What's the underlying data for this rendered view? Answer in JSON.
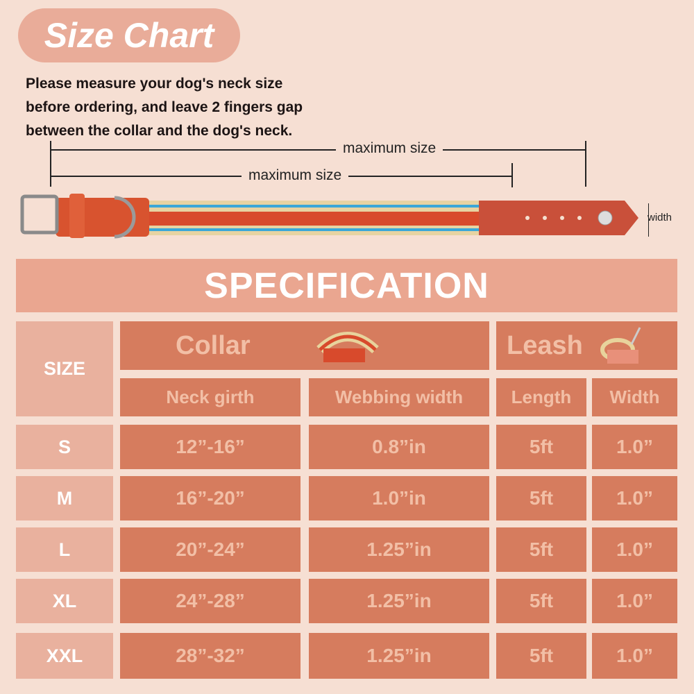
{
  "title": "Size Chart",
  "instructions": "Please measure your dog's neck size\nbefore ordering, and leave 2 fingers gap\nbetween the collar and the dog's neck.",
  "diagram": {
    "max_label_1": "maximum size",
    "max_label_2": "maximum size",
    "width_label": "width"
  },
  "specification": "SPECIFICATION",
  "table": {
    "size_header": "SIZE",
    "collar_header": "Collar",
    "leash_header": "Leash",
    "columns": [
      "Neck girth",
      "Webbing width",
      "Length",
      "Width"
    ],
    "rows": [
      {
        "size": "S",
        "neck": "12”-16”",
        "webbing": "0.8”in",
        "length": "5ft",
        "width": "1.0”"
      },
      {
        "size": "M",
        "neck": "16”-20”",
        "webbing": "1.0”in",
        "length": "5ft",
        "width": "1.0”"
      },
      {
        "size": "L",
        "neck": "20”-24”",
        "webbing": "1.25”in",
        "length": "5ft",
        "width": "1.0”"
      },
      {
        "size": "XL",
        "neck": "24”-28”",
        "webbing": "1.25”in",
        "length": "5ft",
        "width": "1.0”"
      },
      {
        "size": "XXL",
        "neck": "28”-32”",
        "webbing": "1.25”in",
        "length": "5ft",
        "width": "1.0”"
      }
    ]
  },
  "colors": {
    "background": "#f6dfd3",
    "cell": "#d67c5e",
    "cell_text": "#f2bfa6",
    "size_cell": "#e9b19e",
    "accent": "#eaa690"
  }
}
